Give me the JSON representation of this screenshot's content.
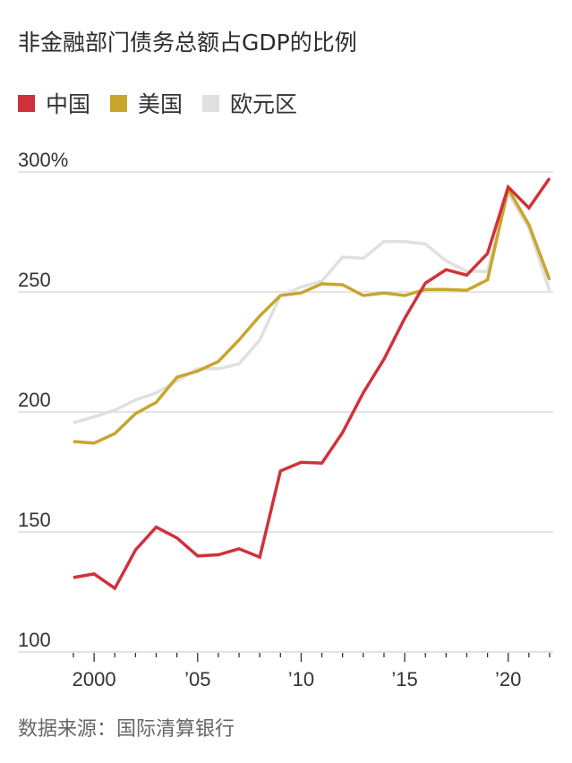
{
  "title": "非金融部门债务总额占GDP的比例",
  "source": "数据来源：国际清算银行",
  "chart_data": {
    "type": "line",
    "title": "非金融部门债务总额占GDP的比例",
    "xlabel": "",
    "ylabel": "",
    "ylim": [
      100,
      300
    ],
    "xlim": [
      1999,
      2022
    ],
    "grid": true,
    "legend_position": "top-left",
    "y_ticks": [
      {
        "value": 300,
        "label": "300%"
      },
      {
        "value": 250,
        "label": "250"
      },
      {
        "value": 200,
        "label": "200"
      },
      {
        "value": 150,
        "label": "150"
      },
      {
        "value": 100,
        "label": "100"
      }
    ],
    "x_ticks": [
      {
        "value": 2000,
        "label": "2000"
      },
      {
        "value": 2005,
        "label": "’05"
      },
      {
        "value": 2010,
        "label": "’10"
      },
      {
        "value": 2015,
        "label": "’15"
      },
      {
        "value": 2020,
        "label": "’20"
      }
    ],
    "x": [
      1999,
      2000,
      2001,
      2002,
      2003,
      2004,
      2005,
      2006,
      2007,
      2008,
      2009,
      2010,
      2011,
      2012,
      2013,
      2014,
      2015,
      2016,
      2017,
      2018,
      2019,
      2020,
      2021,
      2022
    ],
    "series": [
      {
        "name": "欧元区",
        "color": "#e0e0e0",
        "values": [
          195.5,
          198,
          200.7,
          205,
          208,
          213,
          218,
          218,
          220,
          230,
          248.5,
          252,
          254.5,
          264.5,
          264,
          271,
          271,
          270,
          263,
          258.6,
          258.6,
          291.4,
          276.5,
          250.4
        ]
      },
      {
        "name": "美国",
        "color": "#c9a52c",
        "values": [
          187.7,
          187,
          191,
          199.3,
          204,
          214.5,
          217,
          221,
          230,
          240,
          248.5,
          249.6,
          253.4,
          253,
          248.5,
          249.6,
          248.5,
          251,
          251,
          250.7,
          255,
          293,
          278,
          255
        ]
      },
      {
        "name": "中国",
        "color": "#d0313a",
        "values": [
          131,
          132.5,
          126.5,
          142.5,
          152,
          147.5,
          140,
          140.5,
          143,
          139.5,
          175.4,
          179,
          178.7,
          191.4,
          208,
          222,
          239,
          253.7,
          259.3,
          257,
          266,
          293.7,
          285,
          297.4
        ]
      }
    ],
    "legend": [
      "中国",
      "美国",
      "欧元区"
    ]
  }
}
